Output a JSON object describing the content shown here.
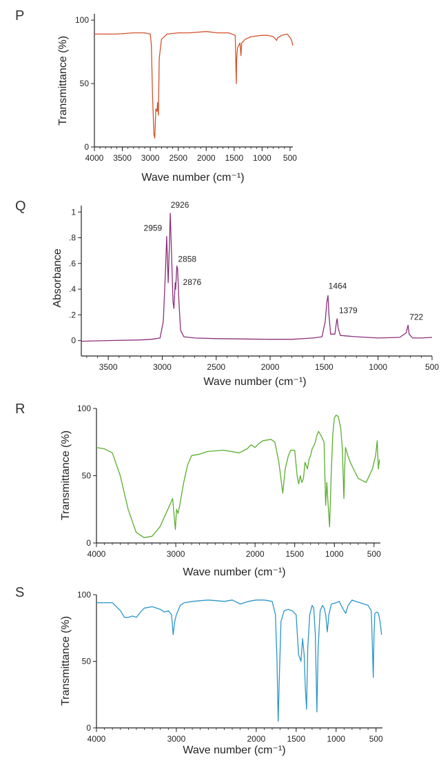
{
  "panels": [
    {
      "label": "P",
      "ylabel": "Transmittance (%)",
      "xlabel": "Wave number (cm⁻¹)"
    },
    {
      "label": "Q",
      "ylabel": "Absorbance",
      "xlabel": "Wave number (cm⁻¹)"
    },
    {
      "label": "R",
      "ylabel": "Transmittance (%)",
      "xlabel": "Wave number (cm⁻¹)"
    },
    {
      "label": "S",
      "ylabel": "Transmittance (%)",
      "xlabel": "Wave number (cm⁻¹)"
    }
  ],
  "chart_data": [
    {
      "type": "line",
      "panel": "P",
      "xlabel": "Wave number (cm⁻¹)",
      "ylabel": "Transmittance (%)",
      "xlim": [
        4000,
        450
      ],
      "ylim": [
        0,
        105
      ],
      "xticks": [
        4000,
        3500,
        3000,
        2500,
        2000,
        1500,
        1000,
        500
      ],
      "xtick_labels": [
        "4000",
        "3500",
        "3000",
        "2500",
        "2000",
        "1500",
        "1000",
        "500"
      ],
      "yticks": [
        0,
        50,
        100
      ],
      "ytick_labels": [
        "0",
        "50",
        "100"
      ],
      "color": "#d2522a",
      "series": [
        {
          "points": [
            [
              4000,
              89
            ],
            [
              3600,
              89
            ],
            [
              3300,
              90
            ],
            [
              3100,
              90
            ],
            [
              3000,
              89
            ],
            [
              2980,
              80
            ],
            [
              2960,
              40
            ],
            [
              2935,
              10
            ],
            [
              2920,
              7
            ],
            [
              2900,
              30
            ],
            [
              2880,
              28
            ],
            [
              2870,
              35
            ],
            [
              2855,
              25
            ],
            [
              2840,
              70
            ],
            [
              2800,
              85
            ],
            [
              2700,
              89
            ],
            [
              2500,
              90
            ],
            [
              2300,
              90
            ],
            [
              2000,
              91
            ],
            [
              1800,
              90
            ],
            [
              1600,
              90
            ],
            [
              1480,
              88
            ],
            [
              1470,
              65
            ],
            [
              1462,
              50
            ],
            [
              1455,
              70
            ],
            [
              1440,
              78
            ],
            [
              1420,
              80
            ],
            [
              1395,
              82
            ],
            [
              1378,
              72
            ],
            [
              1365,
              82
            ],
            [
              1300,
              85
            ],
            [
              1200,
              87
            ],
            [
              1000,
              88
            ],
            [
              900,
              88
            ],
            [
              800,
              87
            ],
            [
              740,
              84
            ],
            [
              722,
              86
            ],
            [
              650,
              88
            ],
            [
              550,
              89
            ],
            [
              480,
              85
            ],
            [
              450,
              80
            ]
          ]
        }
      ],
      "annotations": []
    },
    {
      "type": "line",
      "panel": "Q",
      "xlabel": "Wave number (cm⁻¹)",
      "ylabel": "Absorbance",
      "xlim": [
        3750,
        500
      ],
      "ylim": [
        -0.12,
        1.05
      ],
      "xticks": [
        3500,
        3000,
        2500,
        2000,
        1500,
        1000,
        500
      ],
      "xtick_labels": [
        "3500",
        "3000",
        "2500",
        "2000",
        "1500",
        "1000",
        "500"
      ],
      "yticks": [
        0,
        0.2,
        0.4,
        0.6,
        0.8,
        1
      ],
      "ytick_labels": [
        "0",
        ".2",
        ".4",
        ".6",
        ".8",
        "1"
      ],
      "color": "#8a2f7a",
      "series": [
        {
          "points": [
            [
              3750,
              -0.005
            ],
            [
              3500,
              0
            ],
            [
              3200,
              0.005
            ],
            [
              3100,
              0.01
            ],
            [
              3020,
              0.02
            ],
            [
              2990,
              0.15
            ],
            [
              2970,
              0.55
            ],
            [
              2959,
              0.81
            ],
            [
              2945,
              0.45
            ],
            [
              2935,
              0.7
            ],
            [
              2926,
              0.99
            ],
            [
              2915,
              0.7
            ],
            [
              2900,
              0.3
            ],
            [
              2892,
              0.25
            ],
            [
              2880,
              0.45
            ],
            [
              2876,
              0.4
            ],
            [
              2865,
              0.58
            ],
            [
              2858,
              0.56
            ],
            [
              2845,
              0.3
            ],
            [
              2830,
              0.08
            ],
            [
              2800,
              0.03
            ],
            [
              2700,
              0.02
            ],
            [
              2500,
              0.015
            ],
            [
              2000,
              0.01
            ],
            [
              1800,
              0.01
            ],
            [
              1600,
              0.02
            ],
            [
              1520,
              0.03
            ],
            [
              1490,
              0.15
            ],
            [
              1475,
              0.3
            ],
            [
              1464,
              0.35
            ],
            [
              1455,
              0.2
            ],
            [
              1440,
              0.05
            ],
            [
              1400,
              0.05
            ],
            [
              1385,
              0.15
            ],
            [
              1379,
              0.17
            ],
            [
              1370,
              0.1
            ],
            [
              1350,
              0.04
            ],
            [
              1200,
              0.03
            ],
            [
              1000,
              0.02
            ],
            [
              800,
              0.025
            ],
            [
              740,
              0.06
            ],
            [
              722,
              0.12
            ],
            [
              712,
              0.05
            ],
            [
              680,
              0.02
            ],
            [
              600,
              0.02
            ],
            [
              500,
              0.025
            ]
          ]
        }
      ],
      "annotations": [
        {
          "x": 2959,
          "y": 0.81,
          "label": "2959"
        },
        {
          "x": 2926,
          "y": 0.99,
          "label": "2926"
        },
        {
          "x": 2858,
          "y": 0.56,
          "label": "2858"
        },
        {
          "x": 2876,
          "y": 0.4,
          "label": "2876"
        },
        {
          "x": 1464,
          "y": 0.35,
          "label": "1464"
        },
        {
          "x": 1379,
          "y": 0.17,
          "label": "1379"
        },
        {
          "x": 722,
          "y": 0.12,
          "label": "722"
        }
      ]
    },
    {
      "type": "line",
      "panel": "R",
      "xlabel": "Wave number (cm⁻¹)",
      "ylabel": "Transmittance (%)",
      "xlim": [
        4000,
        420
      ],
      "ylim": [
        0,
        100
      ],
      "xticks": [
        4000,
        3000,
        2000,
        1500,
        1000,
        500
      ],
      "xtick_labels": [
        "4000",
        "3000",
        "2000",
        "1500",
        "1000",
        "500"
      ],
      "yticks": [
        0,
        50,
        100
      ],
      "ytick_labels": [
        "0",
        "50",
        "100"
      ],
      "color": "#5aad2e",
      "series": [
        {
          "points": [
            [
              4000,
              71
            ],
            [
              3900,
              70
            ],
            [
              3800,
              67
            ],
            [
              3700,
              50
            ],
            [
              3600,
              25
            ],
            [
              3500,
              8
            ],
            [
              3400,
              4
            ],
            [
              3300,
              5
            ],
            [
              3200,
              12
            ],
            [
              3100,
              25
            ],
            [
              3040,
              33
            ],
            [
              3020,
              20
            ],
            [
              3005,
              10
            ],
            [
              2990,
              25
            ],
            [
              2970,
              22
            ],
            [
              2950,
              28
            ],
            [
              2900,
              45
            ],
            [
              2850,
              58
            ],
            [
              2800,
              65
            ],
            [
              2700,
              66
            ],
            [
              2600,
              68
            ],
            [
              2400,
              69
            ],
            [
              2200,
              67
            ],
            [
              2100,
              70
            ],
            [
              2050,
              73
            ],
            [
              2000,
              71
            ],
            [
              1950,
              74
            ],
            [
              1900,
              76
            ],
            [
              1800,
              77
            ],
            [
              1750,
              75
            ],
            [
              1700,
              60
            ],
            [
              1650,
              37
            ],
            [
              1620,
              55
            ],
            [
              1580,
              65
            ],
            [
              1550,
              69
            ],
            [
              1500,
              69
            ],
            [
              1470,
              50
            ],
            [
              1450,
              44
            ],
            [
              1430,
              50
            ],
            [
              1410,
              45
            ],
            [
              1390,
              48
            ],
            [
              1370,
              60
            ],
            [
              1340,
              55
            ],
            [
              1320,
              62
            ],
            [
              1300,
              65
            ],
            [
              1280,
              70
            ],
            [
              1260,
              72
            ],
            [
              1240,
              75
            ],
            [
              1220,
              80
            ],
            [
              1200,
              83
            ],
            [
              1170,
              80
            ],
            [
              1130,
              75
            ],
            [
              1110,
              28
            ],
            [
              1095,
              45
            ],
            [
              1080,
              30
            ],
            [
              1060,
              12
            ],
            [
              1040,
              50
            ],
            [
              1020,
              80
            ],
            [
              1000,
              93
            ],
            [
              980,
              95
            ],
            [
              950,
              94
            ],
            [
              920,
              85
            ],
            [
              900,
              70
            ],
            [
              880,
              33
            ],
            [
              870,
              55
            ],
            [
              860,
              71
            ],
            [
              830,
              65
            ],
            [
              800,
              60
            ],
            [
              700,
              48
            ],
            [
              600,
              45
            ],
            [
              520,
              55
            ],
            [
              480,
              65
            ],
            [
              460,
              76
            ],
            [
              445,
              55
            ],
            [
              430,
              62
            ]
          ]
        }
      ],
      "annotations": []
    },
    {
      "type": "line",
      "panel": "S",
      "xlabel": "Wave number (cm⁻¹)",
      "ylabel": "Transmittance (%)",
      "xlim": [
        4000,
        420
      ],
      "ylim": [
        0,
        100
      ],
      "xticks": [
        4000,
        3000,
        2000,
        1500,
        1000,
        500
      ],
      "xtick_labels": [
        "4000",
        "3000",
        "2000",
        "1500",
        "1000",
        "500"
      ],
      "yticks": [
        0,
        50,
        100
      ],
      "ytick_labels": [
        "0",
        "50",
        "100"
      ],
      "color": "#2a95c8",
      "series": [
        {
          "points": [
            [
              4000,
              94
            ],
            [
              3800,
              94
            ],
            [
              3700,
              88
            ],
            [
              3650,
              83
            ],
            [
              3600,
              83
            ],
            [
              3550,
              84
            ],
            [
              3500,
              83
            ],
            [
              3450,
              87
            ],
            [
              3400,
              90
            ],
            [
              3300,
              91
            ],
            [
              3200,
              89
            ],
            [
              3150,
              87
            ],
            [
              3100,
              88
            ],
            [
              3060,
              85
            ],
            [
              3040,
              70
            ],
            [
              3020,
              80
            ],
            [
              3000,
              85
            ],
            [
              2950,
              92
            ],
            [
              2900,
              94
            ],
            [
              2800,
              95
            ],
            [
              2600,
              96
            ],
            [
              2400,
              95
            ],
            [
              2300,
              96
            ],
            [
              2200,
              93
            ],
            [
              2100,
              95
            ],
            [
              2000,
              96
            ],
            [
              1900,
              96
            ],
            [
              1800,
              95
            ],
            [
              1760,
              85
            ],
            [
              1740,
              50
            ],
            [
              1725,
              5
            ],
            [
              1710,
              40
            ],
            [
              1690,
              80
            ],
            [
              1650,
              88
            ],
            [
              1600,
              89
            ],
            [
              1550,
              88
            ],
            [
              1500,
              85
            ],
            [
              1470,
              55
            ],
            [
              1440,
              50
            ],
            [
              1420,
              67
            ],
            [
              1400,
              55
            ],
            [
              1385,
              30
            ],
            [
              1370,
              14
            ],
            [
              1355,
              60
            ],
            [
              1330,
              85
            ],
            [
              1300,
              92
            ],
            [
              1280,
              90
            ],
            [
              1260,
              70
            ],
            [
              1240,
              12
            ],
            [
              1225,
              60
            ],
            [
              1200,
              88
            ],
            [
              1170,
              92
            ],
            [
              1150,
              90
            ],
            [
              1130,
              85
            ],
            [
              1110,
              72
            ],
            [
              1090,
              85
            ],
            [
              1060,
              93
            ],
            [
              1000,
              94
            ],
            [
              960,
              95
            ],
            [
              920,
              90
            ],
            [
              880,
              86
            ],
            [
              850,
              92
            ],
            [
              800,
              96
            ],
            [
              750,
              95
            ],
            [
              700,
              94
            ],
            [
              650,
              93
            ],
            [
              600,
              92
            ],
            [
              560,
              88
            ],
            [
              545,
              60
            ],
            [
              535,
              38
            ],
            [
              525,
              70
            ],
            [
              515,
              86
            ],
            [
              490,
              87
            ],
            [
              470,
              86
            ],
            [
              450,
              80
            ],
            [
              430,
              70
            ]
          ]
        }
      ],
      "annotations": []
    }
  ]
}
